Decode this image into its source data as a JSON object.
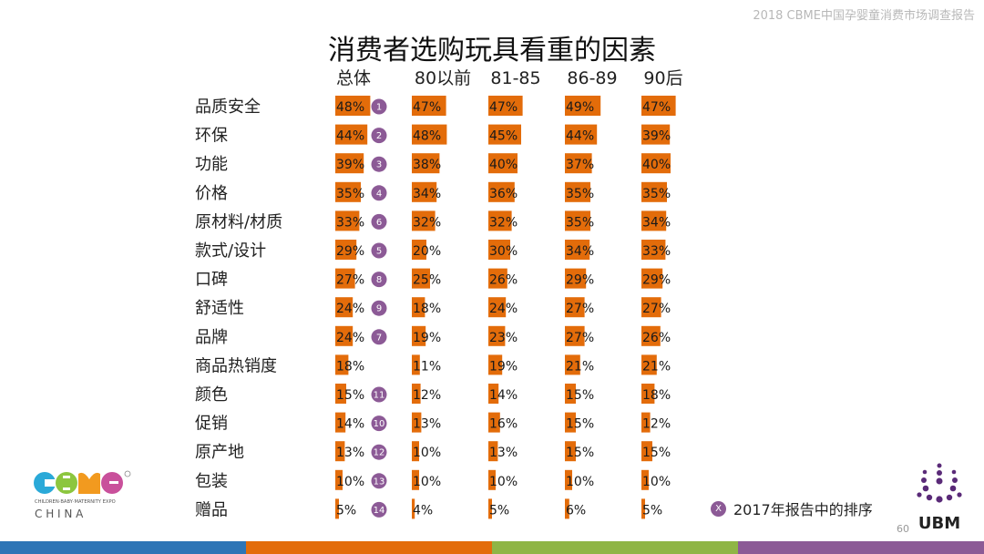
{
  "header_note": "2018 CBME中国孕婴童消费市场调查报告",
  "chart_data": {
    "type": "bar",
    "title": "消费者选购玩具看重的因素",
    "orientation": "horizontal",
    "categories": [
      "品质安全",
      "环保",
      "功能",
      "价格",
      "原材料/材质",
      "款式/设计",
      "口碑",
      "舒适性",
      "品牌",
      "商品热销度",
      "颜色",
      "促销",
      "原产地",
      "包装",
      "赠品"
    ],
    "value_format": "percent",
    "series": [
      {
        "name": "总体",
        "values": [
          48,
          44,
          39,
          35,
          33,
          29,
          27,
          24,
          24,
          18,
          15,
          14,
          13,
          10,
          5
        ]
      },
      {
        "name": "80以前",
        "values": [
          47,
          48,
          38,
          34,
          32,
          20,
          25,
          18,
          19,
          11,
          12,
          13,
          10,
          10,
          4
        ]
      },
      {
        "name": "81-85",
        "values": [
          47,
          45,
          40,
          36,
          32,
          30,
          26,
          24,
          23,
          19,
          14,
          16,
          13,
          10,
          5
        ]
      },
      {
        "name": "86-89",
        "values": [
          49,
          44,
          37,
          35,
          35,
          34,
          29,
          27,
          27,
          21,
          15,
          15,
          15,
          10,
          6
        ]
      },
      {
        "name": "90后",
        "values": [
          47,
          39,
          40,
          35,
          34,
          33,
          29,
          27,
          26,
          21,
          18,
          12,
          15,
          10,
          5
        ]
      }
    ],
    "rank_2017": [
      1,
      2,
      3,
      4,
      6,
      5,
      8,
      9,
      7,
      null,
      11,
      10,
      12,
      13,
      14
    ],
    "colors": {
      "bar": "#e36c0a",
      "badge": "#8c5a96",
      "label": "#1a1a1a"
    }
  },
  "legend": {
    "badge": "X",
    "label": "2017年报告中的排序"
  },
  "page_number": "60",
  "logos": {
    "cbme": {
      "tagline": "CHILDREN·BABY·MATERNITY EXPO",
      "country": "C H I N A"
    },
    "ubm": {
      "name": "UBM"
    }
  },
  "footer_colors": [
    "#2e75b6",
    "#e36c0a",
    "#8fb545",
    "#8c5a96"
  ]
}
